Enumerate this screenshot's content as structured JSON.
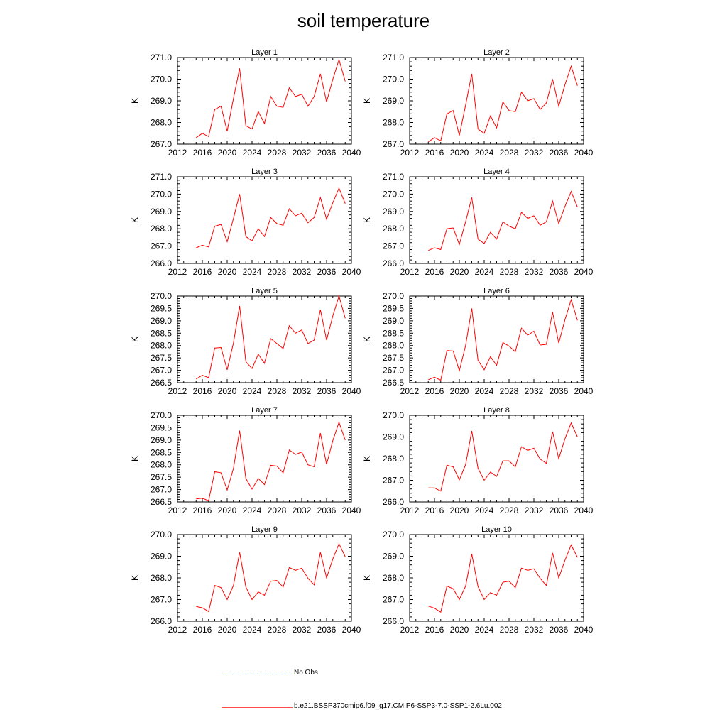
{
  "title": "soil temperature",
  "legend": {
    "obs_label": "No Obs",
    "model_label": "b.e21.BSSP370cmip6.f09_g17.CMIP6-SSP3-7.0-SSP1-2.6Lu.002",
    "obs_color": "#5b6bd0",
    "model_color": "#ff0000"
  },
  "chart_data": [
    {
      "type": "line",
      "title": "Layer 1",
      "xlabel": "",
      "ylabel": "K",
      "xlim": [
        2012,
        2040
      ],
      "ylim": [
        267.0,
        271.0
      ],
      "xticks": [
        2012,
        2016,
        2020,
        2024,
        2028,
        2032,
        2036,
        2040
      ],
      "yticks": [
        "267.0",
        "268.0",
        "269.0",
        "270.0",
        "271.0"
      ],
      "series": [
        {
          "color": "#ff0000",
          "x": [
            2015,
            2016,
            2017,
            2018,
            2019,
            2020,
            2021,
            2022,
            2023,
            2024,
            2025,
            2026,
            2027,
            2028,
            2029,
            2030,
            2031,
            2032,
            2033,
            2034,
            2035,
            2036,
            2037,
            2038,
            2039
          ],
          "y": [
            267.3,
            267.5,
            267.35,
            268.6,
            268.75,
            267.6,
            269.1,
            270.5,
            267.85,
            267.7,
            268.5,
            267.95,
            269.2,
            268.75,
            268.7,
            269.6,
            269.2,
            269.3,
            268.75,
            269.2,
            270.25,
            268.95,
            270.0,
            270.9,
            269.9
          ]
        }
      ]
    },
    {
      "type": "line",
      "title": "Layer 2",
      "xlabel": "",
      "ylabel": "K",
      "xlim": [
        2012,
        2040
      ],
      "ylim": [
        267.0,
        271.0
      ],
      "xticks": [
        2012,
        2016,
        2020,
        2024,
        2028,
        2032,
        2036,
        2040
      ],
      "yticks": [
        "267.0",
        "268.0",
        "269.0",
        "270.0",
        "271.0"
      ],
      "series": [
        {
          "color": "#ff0000",
          "x": [
            2015,
            2016,
            2017,
            2018,
            2019,
            2020,
            2021,
            2022,
            2023,
            2024,
            2025,
            2026,
            2027,
            2028,
            2029,
            2030,
            2031,
            2032,
            2033,
            2034,
            2035,
            2036,
            2037,
            2038,
            2039
          ],
          "y": [
            267.1,
            267.3,
            267.15,
            268.4,
            268.55,
            267.4,
            268.8,
            270.25,
            267.7,
            267.5,
            268.3,
            267.75,
            268.95,
            268.55,
            268.5,
            269.4,
            269.0,
            269.1,
            268.6,
            268.9,
            270.0,
            268.75,
            269.75,
            270.6,
            269.7
          ]
        }
      ]
    },
    {
      "type": "line",
      "title": "Layer 3",
      "xlabel": "",
      "ylabel": "K",
      "xlim": [
        2012,
        2040
      ],
      "ylim": [
        266.0,
        271.0
      ],
      "xticks": [
        2012,
        2016,
        2020,
        2024,
        2028,
        2032,
        2036,
        2040
      ],
      "yticks": [
        "266.0",
        "267.0",
        "268.0",
        "269.0",
        "270.0",
        "271.0"
      ],
      "series": [
        {
          "color": "#ff0000",
          "x": [
            2015,
            2016,
            2017,
            2018,
            2019,
            2020,
            2021,
            2022,
            2023,
            2024,
            2025,
            2026,
            2027,
            2028,
            2029,
            2030,
            2031,
            2032,
            2033,
            2034,
            2035,
            2036,
            2037,
            2038,
            2039
          ],
          "y": [
            266.9,
            267.05,
            266.95,
            268.15,
            268.25,
            267.25,
            268.6,
            270.0,
            267.55,
            267.3,
            268.0,
            267.55,
            268.65,
            268.3,
            268.2,
            269.15,
            268.75,
            268.9,
            268.35,
            268.65,
            269.8,
            268.55,
            269.5,
            270.35,
            269.45
          ]
        }
      ]
    },
    {
      "type": "line",
      "title": "Layer 4",
      "xlabel": "",
      "ylabel": "K",
      "xlim": [
        2012,
        2040
      ],
      "ylim": [
        266.0,
        271.0
      ],
      "xticks": [
        2012,
        2016,
        2020,
        2024,
        2028,
        2032,
        2036,
        2040
      ],
      "yticks": [
        "266.0",
        "267.0",
        "268.0",
        "269.0",
        "270.0",
        "271.0"
      ],
      "series": [
        {
          "color": "#ff0000",
          "x": [
            2015,
            2016,
            2017,
            2018,
            2019,
            2020,
            2021,
            2022,
            2023,
            2024,
            2025,
            2026,
            2027,
            2028,
            2029,
            2030,
            2031,
            2032,
            2033,
            2034,
            2035,
            2036,
            2037,
            2038,
            2039
          ],
          "y": [
            266.75,
            266.9,
            266.8,
            268.0,
            268.05,
            267.1,
            268.4,
            269.8,
            267.4,
            267.15,
            267.8,
            267.4,
            268.4,
            268.15,
            268.0,
            268.95,
            268.6,
            268.75,
            268.2,
            268.4,
            269.6,
            268.3,
            269.3,
            270.15,
            269.25
          ]
        }
      ]
    },
    {
      "type": "line",
      "title": "Layer 5",
      "xlabel": "",
      "ylabel": "K",
      "xlim": [
        2012,
        2040
      ],
      "ylim": [
        266.5,
        270.0
      ],
      "xticks": [
        2012,
        2016,
        2020,
        2024,
        2028,
        2032,
        2036,
        2040
      ],
      "yticks": [
        "266.5",
        "267.0",
        "267.5",
        "268.0",
        "268.5",
        "269.0",
        "269.5",
        "270.0"
      ],
      "series": [
        {
          "color": "#ff0000",
          "x": [
            2015,
            2016,
            2017,
            2018,
            2019,
            2020,
            2021,
            2022,
            2023,
            2024,
            2025,
            2026,
            2027,
            2028,
            2029,
            2030,
            2031,
            2032,
            2033,
            2034,
            2035,
            2036,
            2037,
            2038,
            2039
          ],
          "y": [
            266.65,
            266.8,
            266.7,
            267.9,
            267.92,
            267.02,
            268.1,
            269.6,
            267.35,
            267.07,
            267.65,
            267.28,
            268.28,
            268.08,
            267.88,
            268.8,
            268.5,
            268.63,
            268.08,
            268.22,
            269.45,
            268.22,
            269.2,
            270.0,
            269.1
          ]
        }
      ]
    },
    {
      "type": "line",
      "title": "Layer 6",
      "xlabel": "",
      "ylabel": "K",
      "xlim": [
        2012,
        2040
      ],
      "ylim": [
        266.5,
        270.0
      ],
      "xticks": [
        2012,
        2016,
        2020,
        2024,
        2028,
        2032,
        2036,
        2040
      ],
      "yticks": [
        "266.5",
        "267.0",
        "267.5",
        "268.0",
        "268.5",
        "269.0",
        "269.5",
        "270.0"
      ],
      "series": [
        {
          "color": "#ff0000",
          "x": [
            2015,
            2016,
            2017,
            2018,
            2019,
            2020,
            2021,
            2022,
            2023,
            2024,
            2025,
            2026,
            2027,
            2028,
            2029,
            2030,
            2031,
            2032,
            2033,
            2034,
            2035,
            2036,
            2037,
            2038,
            2039
          ],
          "y": [
            266.62,
            266.72,
            266.6,
            267.8,
            267.78,
            266.98,
            268.0,
            269.5,
            267.4,
            267.02,
            267.55,
            267.2,
            268.12,
            267.98,
            267.75,
            268.7,
            268.42,
            268.58,
            268.02,
            268.05,
            269.35,
            268.1,
            269.05,
            269.85,
            269.02
          ]
        }
      ]
    },
    {
      "type": "line",
      "title": "Layer 7",
      "xlabel": "",
      "ylabel": "K",
      "xlim": [
        2012,
        2040
      ],
      "ylim": [
        266.5,
        270.0
      ],
      "xticks": [
        2012,
        2016,
        2020,
        2024,
        2028,
        2032,
        2036,
        2040
      ],
      "yticks": [
        "266.5",
        "267.0",
        "267.5",
        "268.0",
        "268.5",
        "269.0",
        "269.5",
        "270.0"
      ],
      "series": [
        {
          "color": "#ff0000",
          "x": [
            2015,
            2016,
            2017,
            2018,
            2019,
            2020,
            2021,
            2022,
            2023,
            2024,
            2025,
            2026,
            2027,
            2028,
            2029,
            2030,
            2031,
            2032,
            2033,
            2034,
            2035,
            2036,
            2037,
            2038,
            2039
          ],
          "y": [
            266.62,
            266.65,
            266.55,
            267.72,
            267.68,
            266.98,
            267.85,
            269.38,
            267.45,
            267.02,
            267.45,
            267.2,
            267.98,
            267.95,
            267.68,
            268.6,
            268.42,
            268.52,
            268.0,
            267.92,
            269.28,
            268.02,
            268.98,
            269.72,
            269.0
          ]
        }
      ]
    },
    {
      "type": "line",
      "title": "Layer 8",
      "xlabel": "",
      "ylabel": "K",
      "xlim": [
        2012,
        2040
      ],
      "ylim": [
        266.0,
        270.0
      ],
      "xticks": [
        2012,
        2016,
        2020,
        2024,
        2028,
        2032,
        2036,
        2040
      ],
      "yticks": [
        "266.0",
        "267.0",
        "268.0",
        "269.0",
        "270.0"
      ],
      "series": [
        {
          "color": "#ff0000",
          "x": [
            2015,
            2016,
            2017,
            2018,
            2019,
            2020,
            2021,
            2022,
            2023,
            2024,
            2025,
            2026,
            2027,
            2028,
            2029,
            2030,
            2031,
            2032,
            2033,
            2034,
            2035,
            2036,
            2037,
            2038,
            2039
          ],
          "y": [
            266.65,
            266.65,
            266.5,
            267.7,
            267.62,
            267.02,
            267.72,
            269.28,
            267.55,
            267.0,
            267.38,
            267.18,
            267.9,
            267.9,
            267.62,
            268.55,
            268.38,
            268.48,
            267.98,
            267.78,
            269.25,
            268.0,
            268.92,
            269.65,
            269.0
          ]
        }
      ]
    },
    {
      "type": "line",
      "title": "Layer 9",
      "xlabel": "",
      "ylabel": "K",
      "xlim": [
        2012,
        2040
      ],
      "ylim": [
        266.0,
        270.0
      ],
      "xticks": [
        2012,
        2016,
        2020,
        2024,
        2028,
        2032,
        2036,
        2040
      ],
      "yticks": [
        "266.0",
        "267.0",
        "268.0",
        "269.0",
        "270.0"
      ],
      "series": [
        {
          "color": "#ff0000",
          "x": [
            2015,
            2016,
            2017,
            2018,
            2019,
            2020,
            2021,
            2022,
            2023,
            2024,
            2025,
            2026,
            2027,
            2028,
            2029,
            2030,
            2031,
            2032,
            2033,
            2034,
            2035,
            2036,
            2037,
            2038,
            2039
          ],
          "y": [
            266.68,
            266.62,
            266.45,
            267.65,
            267.55,
            267.0,
            267.65,
            269.18,
            267.58,
            267.0,
            267.35,
            267.2,
            267.85,
            267.88,
            267.58,
            268.48,
            268.35,
            268.45,
            267.98,
            267.68,
            269.18,
            268.0,
            268.88,
            269.58,
            268.98
          ]
        }
      ]
    },
    {
      "type": "line",
      "title": "Layer 10",
      "xlabel": "",
      "ylabel": "K",
      "xlim": [
        2012,
        2040
      ],
      "ylim": [
        266.0,
        270.0
      ],
      "xticks": [
        2012,
        2016,
        2020,
        2024,
        2028,
        2032,
        2036,
        2040
      ],
      "yticks": [
        "266.0",
        "267.0",
        "268.0",
        "269.0",
        "270.0"
      ],
      "series": [
        {
          "color": "#ff0000",
          "x": [
            2015,
            2016,
            2017,
            2018,
            2019,
            2020,
            2021,
            2022,
            2023,
            2024,
            2025,
            2026,
            2027,
            2028,
            2029,
            2030,
            2031,
            2032,
            2033,
            2034,
            2035,
            2036,
            2037,
            2038,
            2039
          ],
          "y": [
            266.7,
            266.6,
            266.42,
            267.62,
            267.5,
            267.0,
            267.62,
            269.1,
            267.6,
            267.0,
            267.32,
            267.2,
            267.8,
            267.85,
            267.55,
            268.45,
            268.35,
            268.42,
            267.98,
            267.65,
            269.15,
            268.0,
            268.82,
            269.52,
            268.95
          ]
        }
      ]
    }
  ]
}
